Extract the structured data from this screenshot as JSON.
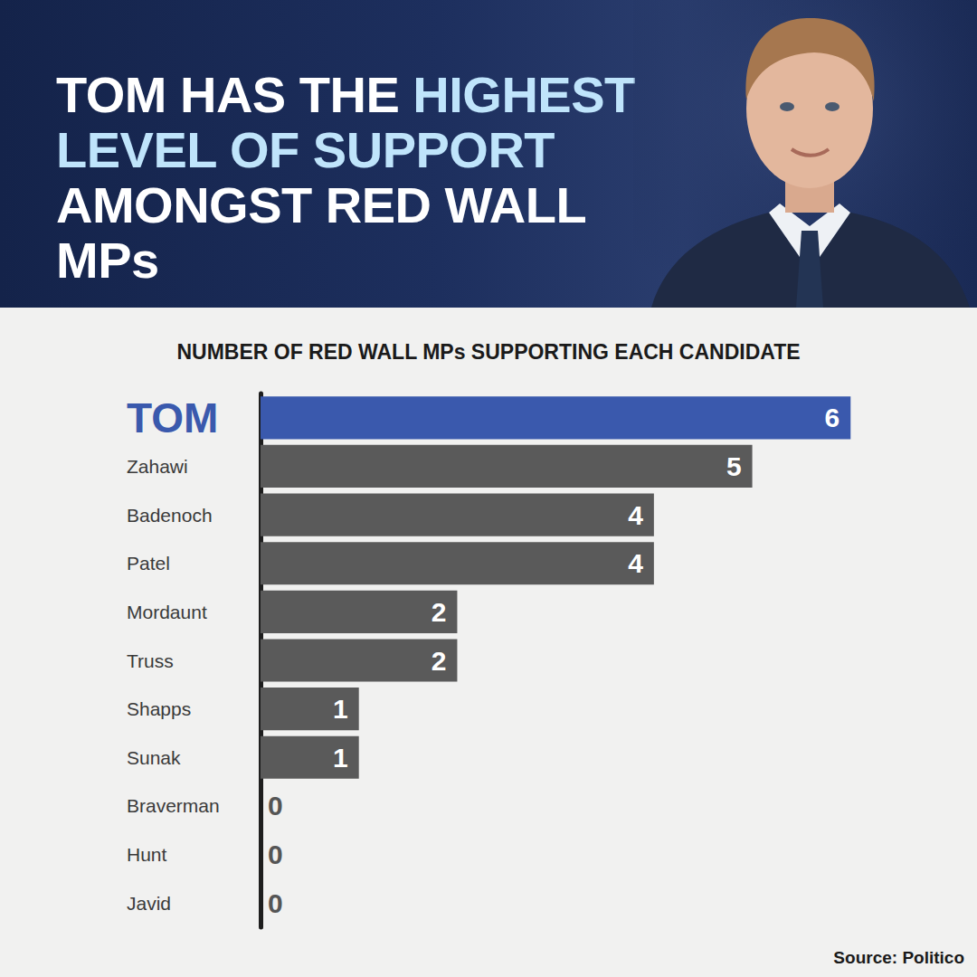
{
  "chart_data": {
    "type": "bar",
    "orientation": "horizontal",
    "title": "TOM HAS THE HIGHEST LEVEL OF SUPPORT AMONGST RED WALL MPs",
    "subtitle": "NUMBER OF RED WALL MPs SUPPORTING EACH CANDIDATE",
    "annotations": [
      "Source: Politico"
    ],
    "categories": [
      "TOM",
      "Zahawi",
      "Badenoch",
      "Patel",
      "Mordaunt",
      "Truss",
      "Shapps",
      "Sunak",
      "Braverman",
      "Hunt",
      "Javid"
    ],
    "values": [
      6,
      5,
      4,
      4,
      2,
      2,
      1,
      1,
      0,
      0,
      0
    ],
    "colors": [
      "#3a59ad",
      "#5a5a5a",
      "#5a5a5a",
      "#5a5a5a",
      "#5a5a5a",
      "#5a5a5a",
      "#5a5a5a",
      "#5a5a5a",
      "#5a5a5a",
      "#5a5a5a",
      "#5a5a5a"
    ],
    "xlim": [
      0,
      7
    ],
    "data_labels": true,
    "tick_labels": "y",
    "grid": false
  }
}
